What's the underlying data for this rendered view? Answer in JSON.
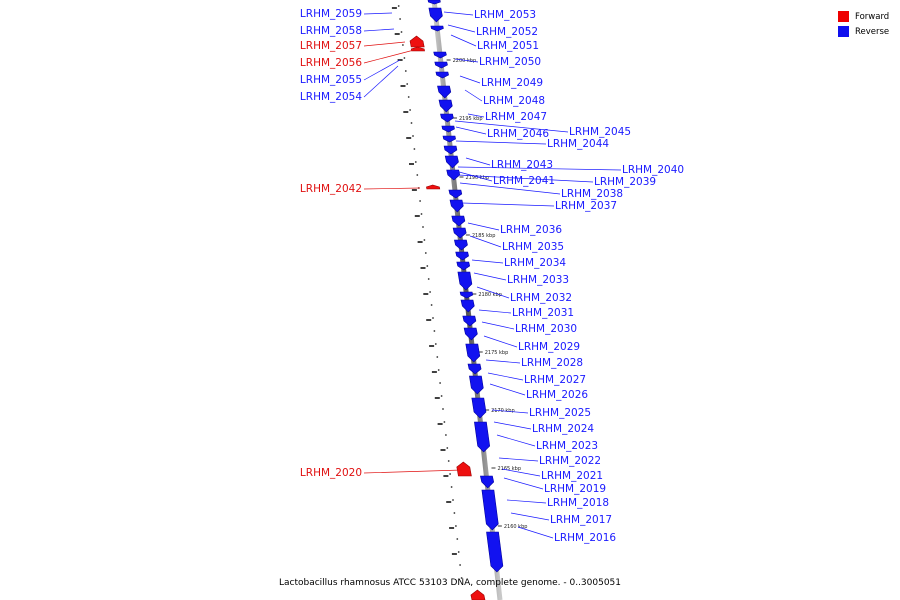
{
  "legend": {
    "forward_label": "Forward",
    "reverse_label": "Reverse",
    "forward_color": "#ee0000",
    "reverse_color": "#1010ee"
  },
  "caption": "Lactobacillus rhamnosus ATCC 53103 DNA, complete genome. - 0..3005051",
  "ticks": [
    "2200 kbp",
    "2195 kbp",
    "2190 kbp",
    "2185 kbp",
    "2180 kbp",
    "2175 kbp",
    "2170 kbp",
    "2165 kbp",
    "2160 kbp"
  ],
  "genes_forward": [
    "LRHM_2057",
    "LRHM_2056",
    "LRHM_2042",
    "LRHM_2020"
  ],
  "labels_left": [
    "LRHM_2059",
    "LRHM_2058",
    "LRHM_2057",
    "LRHM_2056",
    "LRHM_2055",
    "LRHM_2054",
    "LRHM_2042",
    "LRHM_2020"
  ],
  "labels_right": [
    "LRHM_2053",
    "LRHM_2052",
    "LRHM_2051",
    "LRHM_2050",
    "LRHM_2049",
    "LRHM_2048",
    "LRHM_2047",
    "LRHM_2046",
    "LRHM_2045",
    "LRHM_2044",
    "LRHM_2043",
    "LRHM_2041",
    "LRHM_2040",
    "LRHM_2039",
    "LRHM_2038",
    "LRHM_2037",
    "LRHM_2036",
    "LRHM_2035",
    "LRHM_2034",
    "LRHM_2033",
    "LRHM_2032",
    "LRHM_2031",
    "LRHM_2030",
    "LRHM_2029",
    "LRHM_2028",
    "LRHM_2027",
    "LRHM_2026",
    "LRHM_2025",
    "LRHM_2024",
    "LRHM_2023",
    "LRHM_2022",
    "LRHM_2021",
    "LRHM_2019",
    "LRHM_2018",
    "LRHM_2017",
    "LRHM_2016"
  ]
}
